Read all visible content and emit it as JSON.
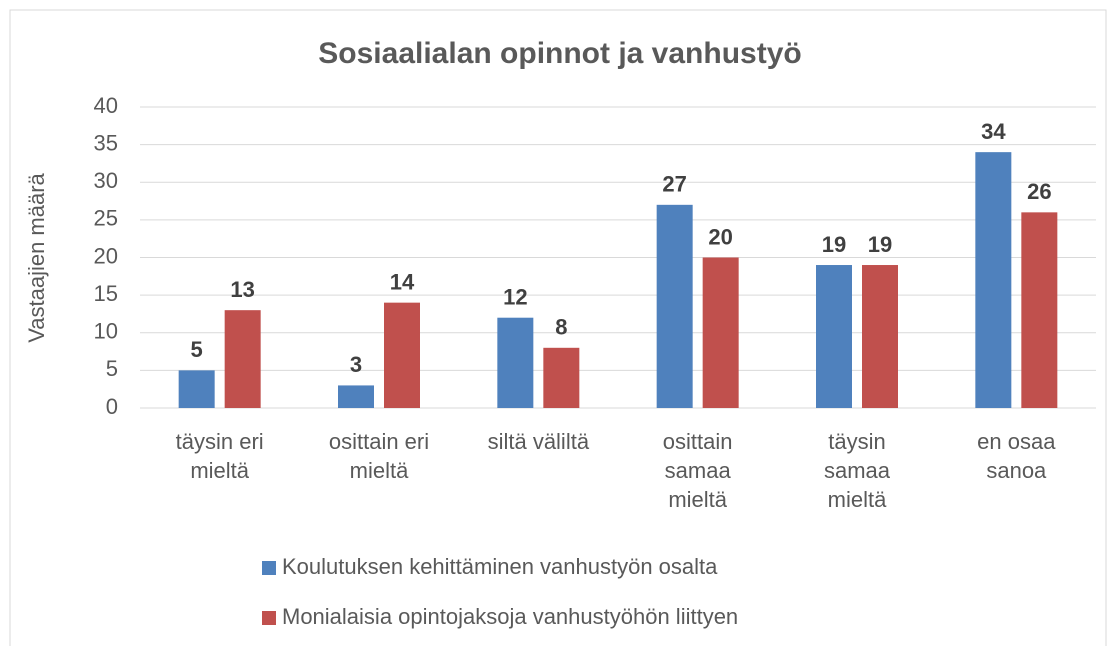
{
  "chart_data": {
    "type": "bar",
    "title": "Sosiaalialan opinnot ja vanhustyö",
    "ylabel": "Vastaajien määrä",
    "categories": [
      "täysin eri\nmieltä",
      "osittain eri\nmieltä",
      "siltä väliltä",
      "osittain\nsamaa\nmieltä",
      "täysin\nsamaa\nmieltä",
      "en osaa\nsanoa"
    ],
    "series": [
      {
        "name": "Koulutuksen kehittäminen vanhustyön osalta",
        "color": "#4f81bd",
        "values": [
          5,
          3,
          12,
          27,
          19,
          34
        ]
      },
      {
        "name": "Monialaisia opintojaksoja vanhustyöhön liittyen",
        "color": "#c0504d",
        "values": [
          13,
          14,
          8,
          20,
          19,
          26
        ]
      }
    ],
    "ylim": [
      0,
      40
    ],
    "yticks": [
      0,
      5,
      10,
      15,
      20,
      25,
      30,
      35,
      40
    ],
    "grid": true,
    "legend": "bottom"
  }
}
